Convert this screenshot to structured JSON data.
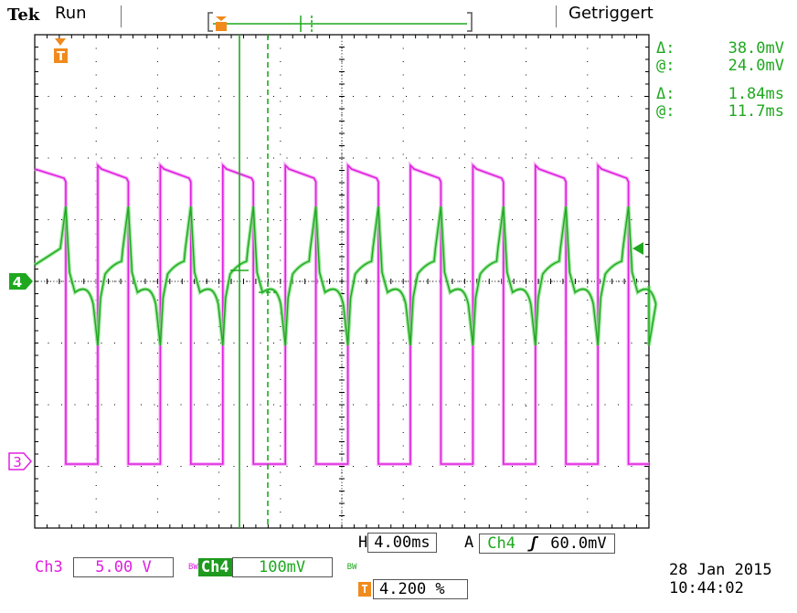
{
  "header": {
    "brand": "Tek",
    "run_state": "Run",
    "trigger_state": "Getriggert"
  },
  "cursor_readout": {
    "amp_delta_symbol": "Δ:",
    "amp_delta": "38.0mV",
    "amp_at_symbol": "@:",
    "amp_at": "24.0mV",
    "time_delta_symbol": "Δ:",
    "time_delta": "1.84ms",
    "time_at_symbol": "@:",
    "time_at": "11.7ms"
  },
  "markers": {
    "trigger_marker": "T",
    "ch4_marker": "4",
    "ch3_marker": "3"
  },
  "bottom": {
    "horizontal_label": "H",
    "horizontal_value": "4.00ms",
    "acq_label": "A",
    "trigger_source": "Ch4",
    "trigger_slope_icon": "rising-edge-icon",
    "trigger_level": "60.0mV",
    "ch3_label": "Ch3",
    "ch3_scale": "5.00 V",
    "ch3_bw": "BW",
    "ch4_label": "Ch4",
    "ch4_scale": "100mV",
    "ch4_bw": "BW",
    "trigger_pos_icon": "T",
    "trigger_pos": "4.200 %",
    "date": "28 Jan  2015",
    "time": "10:44:02"
  },
  "colors": {
    "ch3": "#e020e0",
    "ch3_light": "#f2a6f2",
    "ch4": "#1fa81f",
    "ch4_light": "#7ee07e",
    "grid": "#000000",
    "trigger_marker": "#f08a1c",
    "cursor": "#1fa81f"
  }
}
